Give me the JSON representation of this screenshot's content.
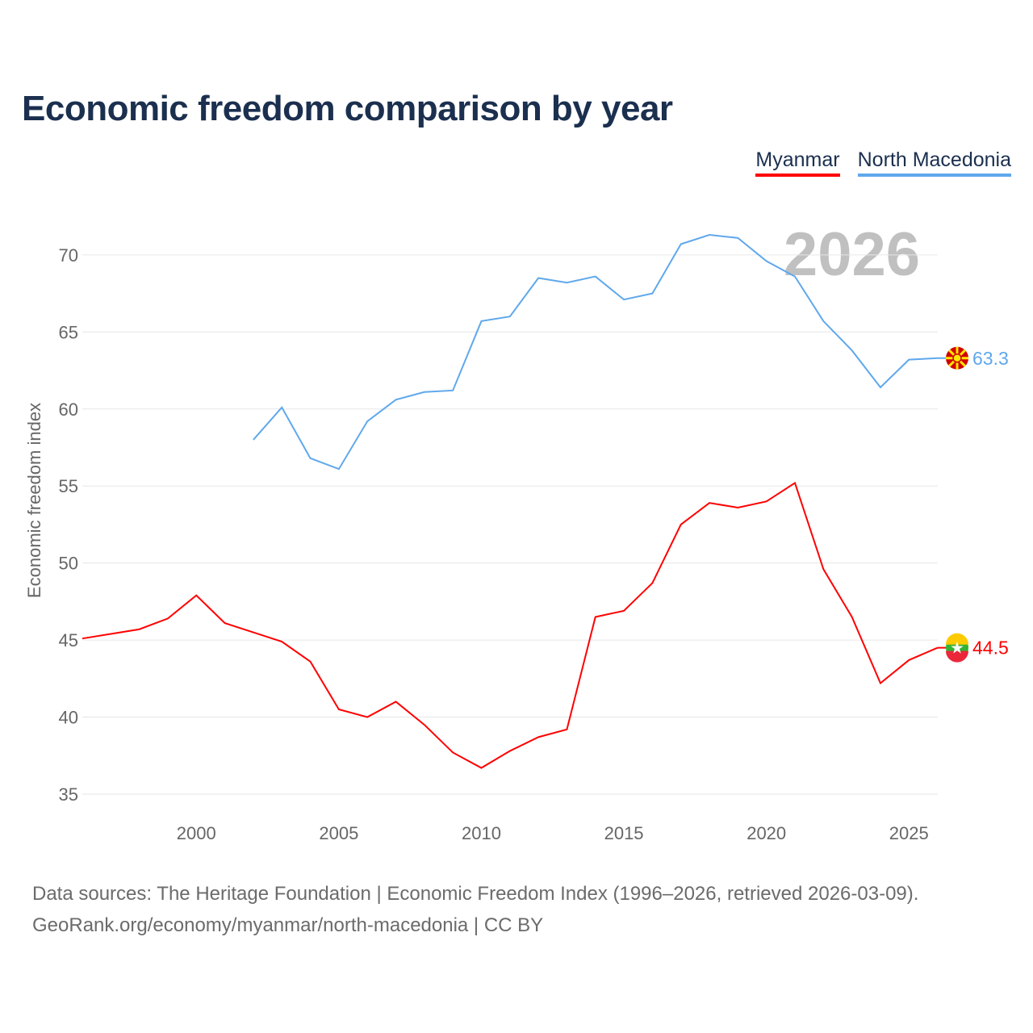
{
  "title": "Economic freedom comparison by year",
  "legend": [
    {
      "name": "Myanmar",
      "color": "#ff0000"
    },
    {
      "name": "North Macedonia",
      "color": "#5fa8ec"
    }
  ],
  "year_watermark": "2026",
  "source_line1": "Data sources: The Heritage Foundation | Economic Freedom Index (1996–2026, retrieved 2026-03-09).",
  "source_line2": "GeoRank.org/economy/myanmar/north-macedonia | CC BY",
  "chart_data": {
    "type": "line",
    "title": "Economic freedom comparison by year",
    "xlabel": "",
    "ylabel": "Economic freedom index",
    "xlim": [
      1996,
      2026
    ],
    "ylim": [
      33.5,
      72.5
    ],
    "xticks": [
      2000,
      2005,
      2010,
      2015,
      2020,
      2025
    ],
    "yticks": [
      35,
      40,
      45,
      50,
      55,
      60,
      65,
      70
    ],
    "grid": true,
    "legend_position": "top-right",
    "series": [
      {
        "name": "Myanmar",
        "color": "#ff0000",
        "end_label": "44.5",
        "x": [
          1996,
          1997,
          1998,
          1999,
          2000,
          2001,
          2002,
          2003,
          2004,
          2005,
          2006,
          2007,
          2008,
          2009,
          2010,
          2011,
          2012,
          2013,
          2014,
          2015,
          2016,
          2017,
          2018,
          2019,
          2020,
          2021,
          2022,
          2023,
          2024,
          2025,
          2026
        ],
        "values": [
          45.1,
          45.4,
          45.7,
          46.4,
          47.9,
          46.1,
          45.5,
          44.9,
          43.6,
          40.5,
          40.0,
          41.0,
          39.5,
          37.7,
          36.7,
          37.8,
          38.7,
          39.2,
          46.5,
          46.9,
          48.7,
          52.5,
          53.9,
          53.6,
          54.0,
          55.2,
          49.6,
          46.5,
          42.2,
          43.7,
          44.5
        ]
      },
      {
        "name": "North Macedonia",
        "color": "#5fa8ec",
        "end_label": "63.3",
        "x": [
          2002,
          2003,
          2004,
          2005,
          2006,
          2007,
          2008,
          2009,
          2010,
          2011,
          2012,
          2013,
          2014,
          2015,
          2016,
          2017,
          2018,
          2019,
          2020,
          2021,
          2022,
          2023,
          2024,
          2025,
          2026
        ],
        "values": [
          58.0,
          60.1,
          56.8,
          56.1,
          59.2,
          60.6,
          61.1,
          61.2,
          65.7,
          66.0,
          68.5,
          68.2,
          68.6,
          67.1,
          67.5,
          70.7,
          71.3,
          71.1,
          69.6,
          68.6,
          65.7,
          63.8,
          61.4,
          63.2,
          63.3
        ]
      }
    ]
  }
}
